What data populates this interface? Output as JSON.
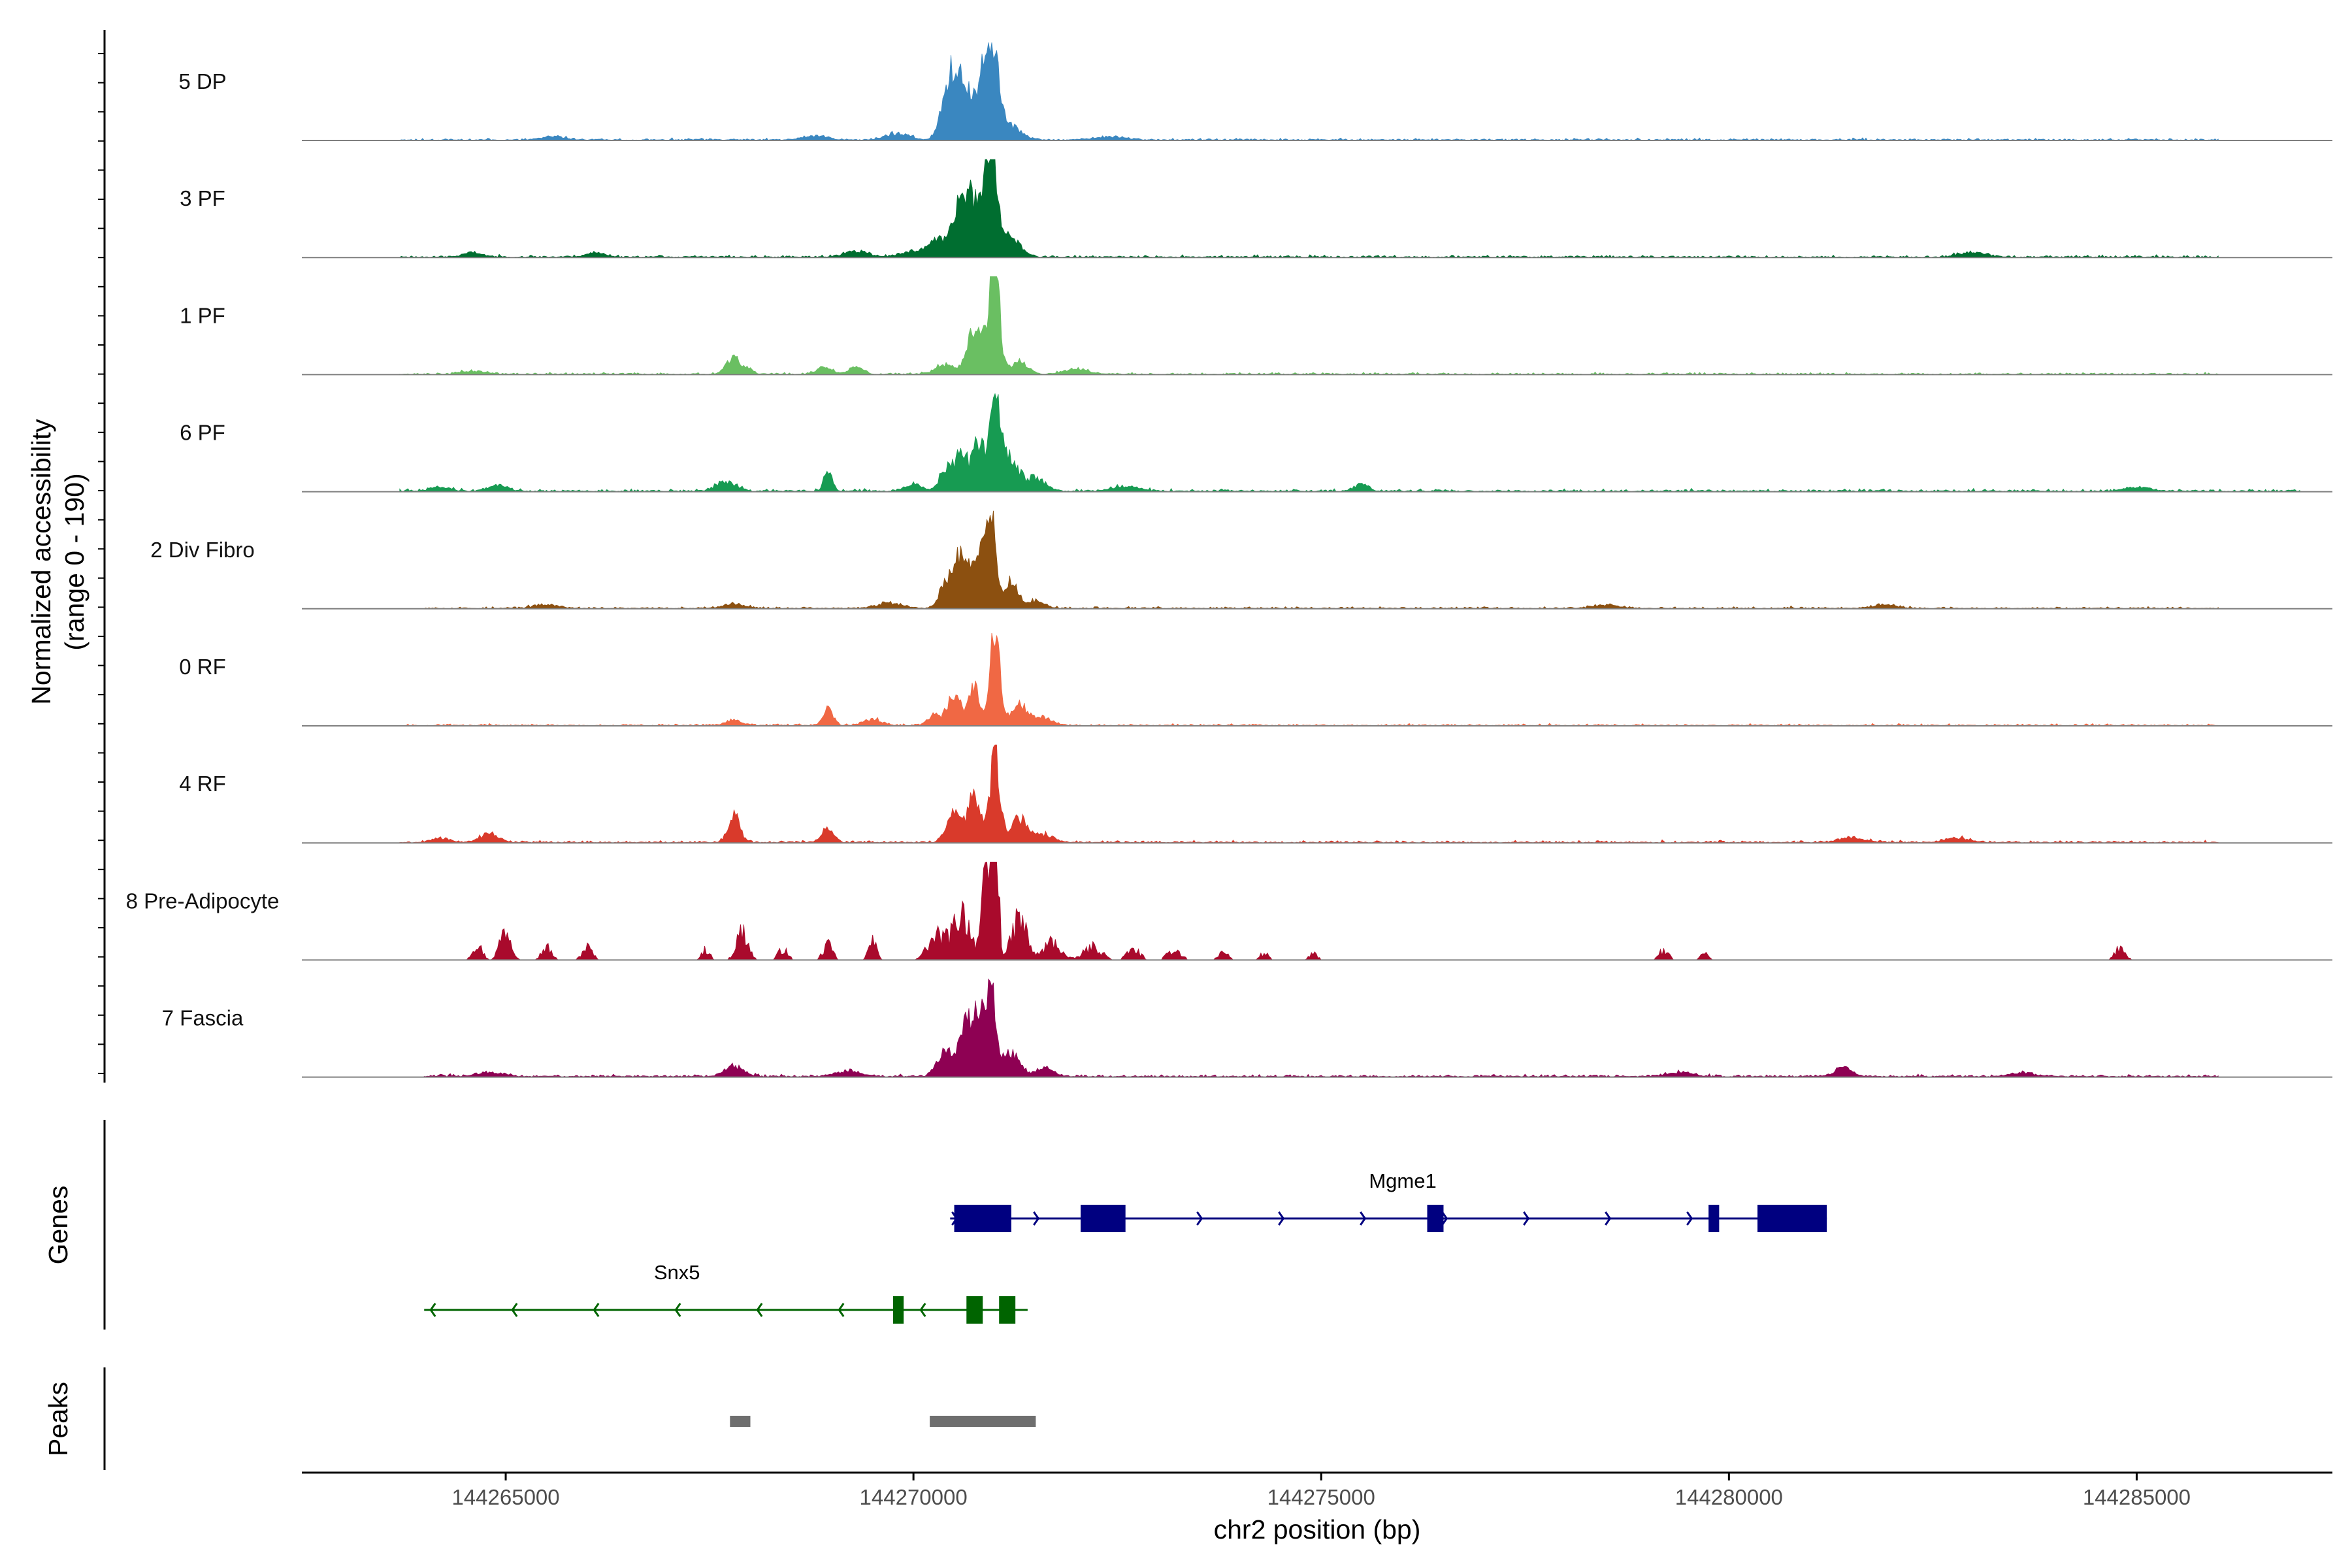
{
  "chart_data": {
    "type": "area",
    "title": "",
    "ylabel": "Normalized accessibility",
    "ylabel_range": "(range 0 - 190)",
    "xlabel": "chr2 position (bp)",
    "xlim": [
      144262500,
      144287400
    ],
    "ylim": [
      0,
      190
    ],
    "x_ticks": [
      {
        "value": 144265000,
        "label": "144265000"
      },
      {
        "value": 144270000,
        "label": "144270000"
      },
      {
        "value": 144275000,
        "label": "144275000"
      },
      {
        "value": 144280000,
        "label": "144280000"
      },
      {
        "value": 144285000,
        "label": "144285000"
      }
    ],
    "series": [
      {
        "name": "5 DP",
        "color": "#3a87c0",
        "range": [
          263700,
          286000
        ],
        "base": 1.5,
        "noise": 1.0,
        "seed": 11,
        "peaks": [
          [
            270400,
            80,
            80
          ],
          [
            270550,
            90,
            120
          ],
          [
            270800,
            110,
            85
          ],
          [
            270950,
            80,
            170
          ],
          [
            271150,
            150,
            30
          ],
          [
            269800,
            150,
            12
          ],
          [
            268800,
            150,
            8
          ],
          [
            265600,
            150,
            6
          ],
          [
            272400,
            200,
            6
          ]
        ]
      },
      {
        "name": "3 PF",
        "color": "#006e30",
        "range": [
          263700,
          286000
        ],
        "base": 1.5,
        "noise": 1.2,
        "seed": 23,
        "peaks": [
          [
            270300,
            120,
            30
          ],
          [
            270600,
            110,
            90
          ],
          [
            270950,
            70,
            185
          ],
          [
            270800,
            150,
            80
          ],
          [
            271200,
            120,
            35
          ],
          [
            269300,
            150,
            10
          ],
          [
            264600,
            120,
            8
          ],
          [
            266100,
            120,
            8
          ],
          [
            270000,
            150,
            10
          ],
          [
            283000,
            150,
            10
          ]
        ]
      },
      {
        "name": "1 PF",
        "color": "#6abf62",
        "range": [
          263700,
          286000
        ],
        "base": 1.5,
        "noise": 1.0,
        "seed": 37,
        "peaks": [
          [
            267780,
            80,
            30
          ],
          [
            267950,
            70,
            10
          ],
          [
            268900,
            100,
            12
          ],
          [
            269300,
            80,
            14
          ],
          [
            270400,
            120,
            20
          ],
          [
            270700,
            70,
            60
          ],
          [
            271000,
            60,
            190
          ],
          [
            270850,
            80,
            80
          ],
          [
            271300,
            100,
            25
          ],
          [
            272000,
            150,
            10
          ],
          [
            264600,
            150,
            6
          ]
        ]
      },
      {
        "name": "6 PF",
        "color": "#179b52",
        "range": [
          263700,
          287000
        ],
        "base": 1.8,
        "noise": 1.3,
        "seed": 41,
        "peaks": [
          [
            270400,
            80,
            40
          ],
          [
            270600,
            80,
            75
          ],
          [
            270800,
            60,
            95
          ],
          [
            271000,
            70,
            170
          ],
          [
            271200,
            90,
            60
          ],
          [
            271500,
            120,
            25
          ],
          [
            268950,
            50,
            40
          ],
          [
            267700,
            120,
            18
          ],
          [
            264900,
            120,
            12
          ],
          [
            270000,
            100,
            15
          ],
          [
            275500,
            80,
            14
          ],
          [
            264200,
            120,
            8
          ],
          [
            272600,
            150,
            10
          ],
          [
            285000,
            150,
            8
          ]
        ]
      },
      {
        "name": "2 Div Fibro",
        "color": "#8c5010",
        "range": [
          264000,
          286000
        ],
        "base": 1.3,
        "noise": 1.1,
        "seed": 53,
        "peaks": [
          [
            270400,
            80,
            45
          ],
          [
            270600,
            90,
            110
          ],
          [
            270950,
            60,
            200
          ],
          [
            270800,
            70,
            100
          ],
          [
            271200,
            80,
            55
          ],
          [
            271500,
            100,
            15
          ],
          [
            269700,
            150,
            10
          ],
          [
            267800,
            150,
            8
          ],
          [
            265500,
            150,
            7
          ],
          [
            278500,
            150,
            7
          ],
          [
            281900,
            150,
            7
          ]
        ]
      },
      {
        "name": "0 RF",
        "color": "#f06844",
        "range": [
          263700,
          286000
        ],
        "base": 1.3,
        "noise": 1.0,
        "seed": 67,
        "peaks": [
          [
            268950,
            60,
            30
          ],
          [
            267800,
            100,
            10
          ],
          [
            270250,
            80,
            18
          ],
          [
            270500,
            90,
            55
          ],
          [
            270750,
            70,
            70
          ],
          [
            271000,
            60,
            180
          ],
          [
            271300,
            100,
            40
          ],
          [
            271600,
            120,
            15
          ],
          [
            269500,
            120,
            12
          ]
        ]
      },
      {
        "name": "4 RF",
        "color": "#d93a2b",
        "range": [
          263700,
          286000
        ],
        "base": 1.5,
        "noise": 1.2,
        "seed": 79,
        "peaks": [
          [
            267800,
            70,
            55
          ],
          [
            268950,
            70,
            30
          ],
          [
            264800,
            120,
            16
          ],
          [
            270500,
            90,
            60
          ],
          [
            270750,
            70,
            95
          ],
          [
            271000,
            60,
            170
          ],
          [
            271300,
            100,
            45
          ],
          [
            271600,
            120,
            15
          ],
          [
            264200,
            120,
            8
          ],
          [
            281500,
            150,
            10
          ],
          [
            282800,
            150,
            8
          ]
        ]
      },
      {
        "name": "8 Pre-Adipocyte",
        "color": "#a90a2c",
        "range": [
          264500,
          285100
        ],
        "base": 0,
        "noise": 4.0,
        "seed": 97,
        "sparse": true,
        "peaks": [
          [
            264650,
            60,
            30
          ],
          [
            265000,
            70,
            60
          ],
          [
            265500,
            60,
            25
          ],
          [
            266000,
            60,
            25
          ],
          [
            267450,
            50,
            20
          ],
          [
            267900,
            70,
            55
          ],
          [
            268400,
            60,
            20
          ],
          [
            268950,
            60,
            28
          ],
          [
            269500,
            50,
            35
          ],
          [
            270300,
            120,
            45
          ],
          [
            270600,
            100,
            90
          ],
          [
            270900,
            60,
            150
          ],
          [
            271000,
            40,
            250
          ],
          [
            271300,
            90,
            80
          ],
          [
            271700,
            100,
            35
          ],
          [
            272200,
            110,
            25
          ],
          [
            272700,
            80,
            20
          ],
          [
            273200,
            80,
            20
          ],
          [
            273800,
            60,
            15
          ],
          [
            274300,
            60,
            12
          ],
          [
            274900,
            50,
            12
          ],
          [
            279200,
            60,
            18
          ],
          [
            279700,
            50,
            12
          ],
          [
            284800,
            60,
            25
          ],
          [
            285200,
            50,
            10
          ]
        ]
      },
      {
        "name": "7 Fascia",
        "color": "#8e0153",
        "range": [
          264000,
          286000
        ],
        "base": 2.0,
        "noise": 1.2,
        "seed": 103,
        "peaks": [
          [
            270400,
            100,
            50
          ],
          [
            270650,
            80,
            85
          ],
          [
            270950,
            60,
            170
          ],
          [
            270800,
            80,
            100
          ],
          [
            271200,
            100,
            45
          ],
          [
            271600,
            120,
            15
          ],
          [
            267800,
            120,
            18
          ],
          [
            269200,
            150,
            10
          ],
          [
            264800,
            150,
            8
          ],
          [
            281400,
            100,
            18
          ],
          [
            279400,
            150,
            8
          ],
          [
            283600,
            150,
            7
          ]
        ]
      }
    ],
    "genes": [
      {
        "name": "Mgme1",
        "strand": "+",
        "color": "#000080",
        "start": 270450,
        "end": 281200,
        "exons": [
          [
            270500,
            271200
          ],
          [
            272050,
            272600
          ],
          [
            276300,
            276500
          ],
          [
            279750,
            279880
          ],
          [
            280350,
            281200
          ]
        ]
      },
      {
        "name": "Snx5",
        "strand": "-",
        "color": "#006400",
        "start": 264000,
        "end": 271400,
        "exons": [
          [
            269750,
            269880
          ],
          [
            270650,
            270850
          ],
          [
            271050,
            271250
          ]
        ]
      }
    ],
    "gene_track_label": "Genes",
    "peaks_track_label": "Peaks",
    "peak_regions": [
      [
        267750,
        268000
      ],
      [
        270200,
        271500
      ]
    ]
  }
}
